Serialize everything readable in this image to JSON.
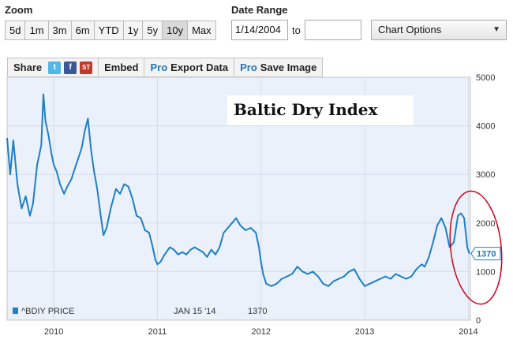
{
  "zoom": {
    "label": "Zoom",
    "buttons": [
      "5d",
      "1m",
      "3m",
      "6m",
      "YTD",
      "1y",
      "5y",
      "10y",
      "Max"
    ],
    "active": "10y"
  },
  "date_range": {
    "label": "Date Range",
    "from": "1/14/2004",
    "to_label": "to",
    "to": ""
  },
  "chart_options": {
    "label": "Chart Options",
    "icon": "triangle-down-icon"
  },
  "toolbar": {
    "share_label": "Share",
    "share_icons": [
      "twitter-icon",
      "facebook-icon",
      "stocktwits-icon"
    ],
    "embed_label": "Embed",
    "pro_label": "Pro",
    "export_label": "Export Data",
    "save_label": "Save Image"
  },
  "colors": {
    "line": "#1f7fc4",
    "plot_bg": "#eaf1fa",
    "annotation_ring": "#d0021b"
  },
  "chart_data": {
    "type": "line",
    "title": "Baltic Dry Index",
    "ylim": [
      0,
      5000
    ],
    "yticks": [
      0,
      1000,
      2000,
      3000,
      4000,
      5000
    ],
    "xticks": [
      {
        "label": "2010",
        "x": 2010.0
      },
      {
        "label": "2011",
        "x": 2011.0
      },
      {
        "label": "2012",
        "x": 2012.0
      },
      {
        "label": "2013",
        "x": 2013.0
      },
      {
        "label": "2014",
        "x": 2014.0
      }
    ],
    "xlim": [
      2009.55,
      2014.02
    ],
    "grid": true,
    "legend": {
      "placement": "bottom-left",
      "series_label": "^BDIY PRICE",
      "date": "JAN 15 '14",
      "value": "1370"
    },
    "last_value_label": "1370",
    "annotation": "red ellipse circling late 2013 – early 2014 peak and drop",
    "series": [
      {
        "points": [
          [
            2009.55,
            3750
          ],
          [
            2009.58,
            3000
          ],
          [
            2009.61,
            3700
          ],
          [
            2009.65,
            2800
          ],
          [
            2009.69,
            2300
          ],
          [
            2009.73,
            2550
          ],
          [
            2009.77,
            2150
          ],
          [
            2009.8,
            2400
          ],
          [
            2009.84,
            3200
          ],
          [
            2009.88,
            3600
          ],
          [
            2009.9,
            4650
          ],
          [
            2009.92,
            4100
          ],
          [
            2009.95,
            3800
          ],
          [
            2009.98,
            3400
          ],
          [
            2010.0,
            3200
          ],
          [
            2010.03,
            3050
          ],
          [
            2010.06,
            2800
          ],
          [
            2010.1,
            2600
          ],
          [
            2010.13,
            2750
          ],
          [
            2010.17,
            2900
          ],
          [
            2010.2,
            3100
          ],
          [
            2010.24,
            3350
          ],
          [
            2010.27,
            3550
          ],
          [
            2010.3,
            3900
          ],
          [
            2010.33,
            4150
          ],
          [
            2010.36,
            3500
          ],
          [
            2010.39,
            3050
          ],
          [
            2010.42,
            2700
          ],
          [
            2010.45,
            2200
          ],
          [
            2010.48,
            1750
          ],
          [
            2010.51,
            1900
          ],
          [
            2010.55,
            2300
          ],
          [
            2010.6,
            2700
          ],
          [
            2010.64,
            2600
          ],
          [
            2010.68,
            2800
          ],
          [
            2010.72,
            2750
          ],
          [
            2010.76,
            2500
          ],
          [
            2010.8,
            2150
          ],
          [
            2010.84,
            2100
          ],
          [
            2010.88,
            1850
          ],
          [
            2010.92,
            1800
          ],
          [
            2010.95,
            1550
          ],
          [
            2010.98,
            1250
          ],
          [
            2011.0,
            1150
          ],
          [
            2011.03,
            1200
          ],
          [
            2011.07,
            1350
          ],
          [
            2011.12,
            1500
          ],
          [
            2011.16,
            1450
          ],
          [
            2011.2,
            1350
          ],
          [
            2011.24,
            1400
          ],
          [
            2011.28,
            1350
          ],
          [
            2011.32,
            1450
          ],
          [
            2011.36,
            1500
          ],
          [
            2011.4,
            1450
          ],
          [
            2011.44,
            1400
          ],
          [
            2011.48,
            1300
          ],
          [
            2011.52,
            1450
          ],
          [
            2011.56,
            1350
          ],
          [
            2011.6,
            1500
          ],
          [
            2011.64,
            1800
          ],
          [
            2011.68,
            1900
          ],
          [
            2011.72,
            2000
          ],
          [
            2011.76,
            2100
          ],
          [
            2011.8,
            1950
          ],
          [
            2011.85,
            1850
          ],
          [
            2011.9,
            1900
          ],
          [
            2011.95,
            1800
          ],
          [
            2011.98,
            1500
          ],
          [
            2012.0,
            1200
          ],
          [
            2012.02,
            950
          ],
          [
            2012.05,
            750
          ],
          [
            2012.1,
            700
          ],
          [
            2012.15,
            750
          ],
          [
            2012.2,
            850
          ],
          [
            2012.25,
            900
          ],
          [
            2012.3,
            950
          ],
          [
            2012.35,
            1100
          ],
          [
            2012.4,
            1000
          ],
          [
            2012.45,
            950
          ],
          [
            2012.5,
            1000
          ],
          [
            2012.55,
            900
          ],
          [
            2012.6,
            750
          ],
          [
            2012.65,
            700
          ],
          [
            2012.7,
            800
          ],
          [
            2012.75,
            850
          ],
          [
            2012.8,
            900
          ],
          [
            2012.85,
            1000
          ],
          [
            2012.9,
            1050
          ],
          [
            2012.95,
            850
          ],
          [
            2013.0,
            700
          ],
          [
            2013.05,
            750
          ],
          [
            2013.1,
            800
          ],
          [
            2013.15,
            850
          ],
          [
            2013.2,
            900
          ],
          [
            2013.25,
            850
          ],
          [
            2013.3,
            950
          ],
          [
            2013.35,
            900
          ],
          [
            2013.4,
            850
          ],
          [
            2013.45,
            900
          ],
          [
            2013.5,
            1050
          ],
          [
            2013.55,
            1150
          ],
          [
            2013.58,
            1100
          ],
          [
            2013.62,
            1300
          ],
          [
            2013.66,
            1600
          ],
          [
            2013.7,
            1950
          ],
          [
            2013.74,
            2100
          ],
          [
            2013.78,
            1900
          ],
          [
            2013.82,
            1500
          ],
          [
            2013.86,
            1600
          ],
          [
            2013.9,
            2150
          ],
          [
            2013.93,
            2200
          ],
          [
            2013.96,
            2100
          ],
          [
            2013.99,
            1500
          ],
          [
            2014.01,
            1370
          ]
        ]
      }
    ]
  }
}
